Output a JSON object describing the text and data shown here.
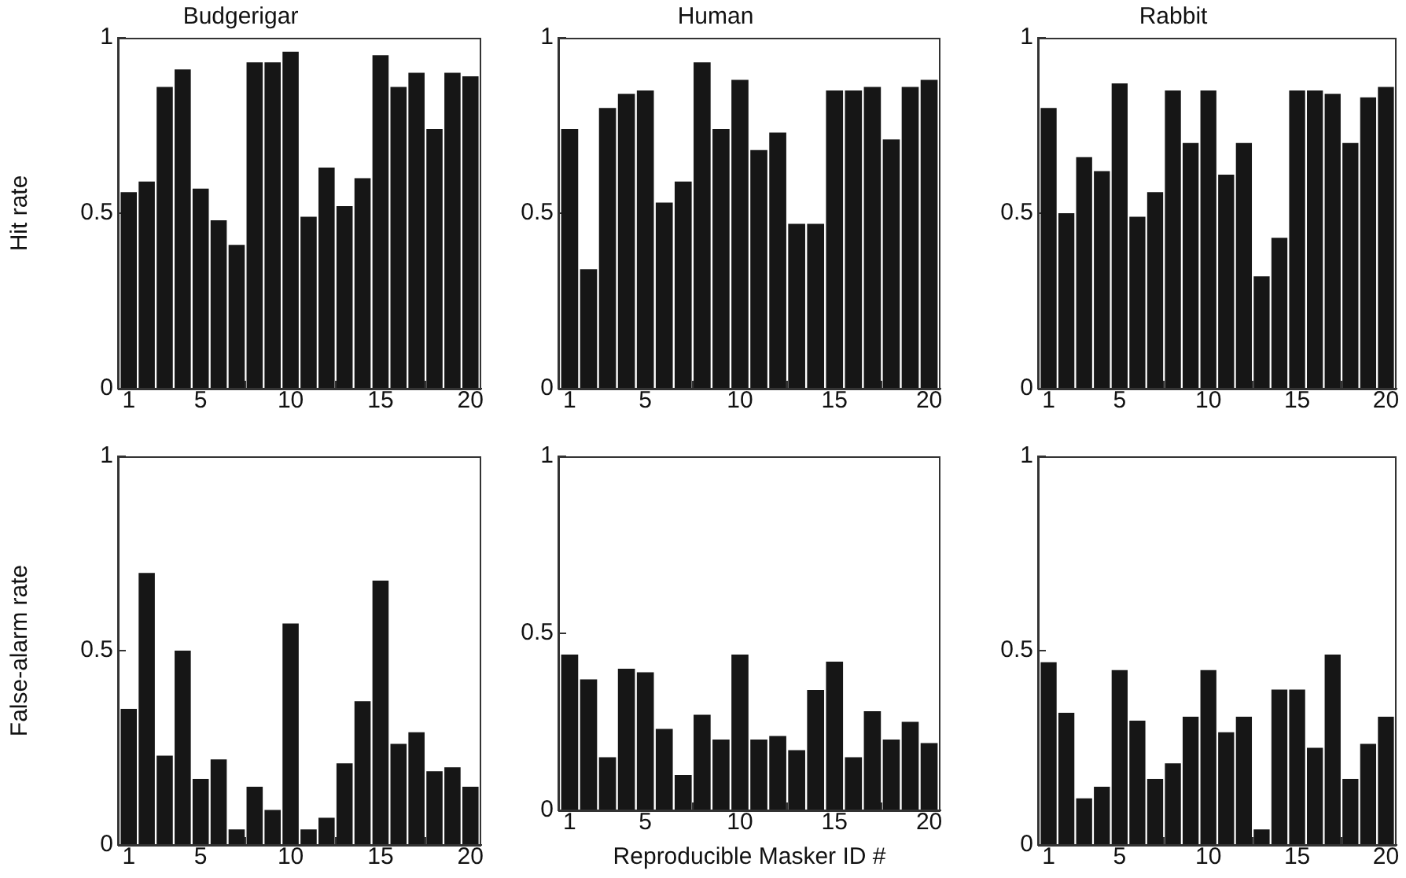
{
  "chart_data": [
    {
      "type": "bar",
      "title": "Budgerigar",
      "ylabel": "Hit rate",
      "color": "#161616",
      "x": [
        1,
        2,
        3,
        4,
        5,
        6,
        7,
        8,
        9,
        10,
        11,
        12,
        13,
        14,
        15,
        16,
        17,
        18,
        19,
        20
      ],
      "xlim": [
        0.4,
        20.6
      ],
      "xticks": [
        1,
        5,
        10,
        15,
        20
      ],
      "ylim": [
        0,
        1
      ],
      "yticks": [
        0,
        0.5,
        1
      ],
      "values": [
        0.56,
        0.59,
        0.86,
        0.91,
        0.57,
        0.48,
        0.41,
        0.93,
        0.93,
        0.96,
        0.49,
        0.63,
        0.52,
        0.6,
        0.95,
        0.86,
        0.9,
        0.74,
        0.9,
        0.89
      ]
    },
    {
      "type": "bar",
      "title": "Human",
      "color": "#161616",
      "x": [
        1,
        2,
        3,
        4,
        5,
        6,
        7,
        8,
        9,
        10,
        11,
        12,
        13,
        14,
        15,
        16,
        17,
        18,
        19,
        20
      ],
      "xlim": [
        0.4,
        20.6
      ],
      "xticks": [
        1,
        5,
        10,
        15,
        20
      ],
      "ylim": [
        0,
        1
      ],
      "yticks": [
        0,
        0.5,
        1
      ],
      "values": [
        0.74,
        0.34,
        0.8,
        0.84,
        0.85,
        0.53,
        0.59,
        0.93,
        0.74,
        0.88,
        0.68,
        0.73,
        0.47,
        0.47,
        0.85,
        0.85,
        0.86,
        0.71,
        0.86,
        0.88
      ]
    },
    {
      "type": "bar",
      "title": "Rabbit",
      "color": "#161616",
      "x": [
        1,
        2,
        3,
        4,
        5,
        6,
        7,
        8,
        9,
        10,
        11,
        12,
        13,
        14,
        15,
        16,
        17,
        18,
        19,
        20
      ],
      "xlim": [
        0.4,
        20.6
      ],
      "xticks": [
        1,
        5,
        10,
        15,
        20
      ],
      "ylim": [
        0,
        1
      ],
      "yticks": [
        0,
        0.5,
        1
      ],
      "values": [
        0.8,
        0.5,
        0.66,
        0.62,
        0.87,
        0.49,
        0.56,
        0.85,
        0.7,
        0.85,
        0.61,
        0.7,
        0.32,
        0.43,
        0.85,
        0.85,
        0.84,
        0.7,
        0.83,
        0.86
      ]
    },
    {
      "type": "bar",
      "ylabel": "False-alarm rate",
      "color": "#161616",
      "x": [
        1,
        2,
        3,
        4,
        5,
        6,
        7,
        8,
        9,
        10,
        11,
        12,
        13,
        14,
        15,
        16,
        17,
        18,
        19,
        20
      ],
      "xlim": [
        0.4,
        20.6
      ],
      "xticks": [
        1,
        5,
        10,
        15,
        20
      ],
      "ylim": [
        0,
        1
      ],
      "yticks": [
        0,
        0.5,
        1
      ],
      "values": [
        0.35,
        0.7,
        0.23,
        0.5,
        0.17,
        0.22,
        0.04,
        0.15,
        0.09,
        0.57,
        0.04,
        0.07,
        0.21,
        0.37,
        0.68,
        0.26,
        0.29,
        0.19,
        0.2,
        0.15
      ]
    },
    {
      "type": "bar",
      "xlabel": "Reproducible Masker ID #",
      "color": "#161616",
      "x": [
        1,
        2,
        3,
        4,
        5,
        6,
        7,
        8,
        9,
        10,
        11,
        12,
        13,
        14,
        15,
        16,
        17,
        18,
        19,
        20
      ],
      "xlim": [
        0.4,
        20.6
      ],
      "xticks": [
        1,
        5,
        10,
        15,
        20
      ],
      "ylim": [
        0,
        1
      ],
      "yticks": [
        0,
        0.5,
        1
      ],
      "values": [
        0.44,
        0.37,
        0.15,
        0.4,
        0.39,
        0.23,
        0.1,
        0.27,
        0.2,
        0.44,
        0.2,
        0.21,
        0.17,
        0.34,
        0.42,
        0.15,
        0.28,
        0.2,
        0.25,
        0.19
      ]
    },
    {
      "type": "bar",
      "color": "#161616",
      "x": [
        1,
        2,
        3,
        4,
        5,
        6,
        7,
        8,
        9,
        10,
        11,
        12,
        13,
        14,
        15,
        16,
        17,
        18,
        19,
        20
      ],
      "xlim": [
        0.4,
        20.6
      ],
      "xticks": [
        1,
        5,
        10,
        15,
        20
      ],
      "ylim": [
        0,
        1
      ],
      "yticks": [
        0,
        0.5,
        1
      ],
      "values": [
        0.47,
        0.34,
        0.12,
        0.15,
        0.45,
        0.32,
        0.17,
        0.21,
        0.33,
        0.45,
        0.29,
        0.33,
        0.04,
        0.4,
        0.4,
        0.25,
        0.49,
        0.17,
        0.26,
        0.33
      ]
    }
  ]
}
